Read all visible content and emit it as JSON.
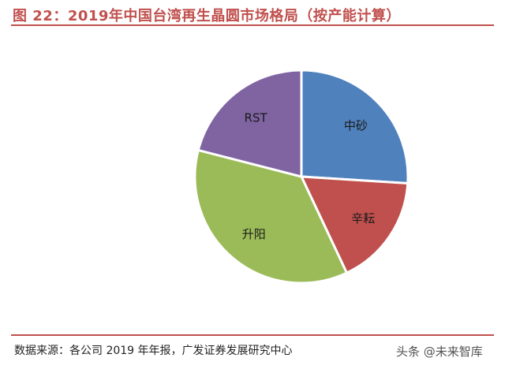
{
  "header": {
    "title": "图 22：2019年中国台湾再生晶圆市场格局（按产能计算）"
  },
  "footer": {
    "source": "数据来源：各公司 2019 年年报，广发证券发展研究中心",
    "watermark": "头条 @未来智库"
  },
  "colors": {
    "accent": "#c0504d"
  },
  "chart_data": {
    "type": "pie",
    "title": "",
    "series": [
      {
        "name": "中砂",
        "value": 26,
        "color": "#4f81bd"
      },
      {
        "name": "辛耘",
        "value": 17,
        "color": "#c0504d"
      },
      {
        "name": "升阳",
        "value": 36,
        "color": "#9bbb59"
      },
      {
        "name": "RST",
        "value": 21,
        "color": "#8064a2"
      }
    ]
  }
}
